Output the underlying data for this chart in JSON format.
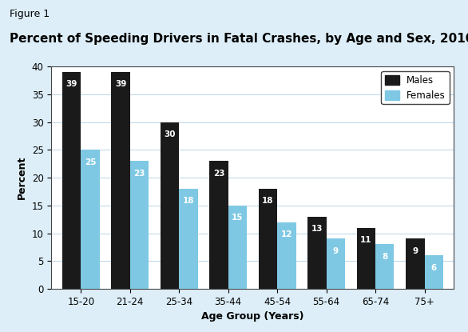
{
  "figure_label": "Figure 1",
  "title": "Percent of Speeding Drivers in Fatal Crashes, by Age and Sex, 2010",
  "categories": [
    "15-20",
    "21-24",
    "25-34",
    "35-44",
    "45-54",
    "55-64",
    "65-74",
    "75+"
  ],
  "males": [
    39,
    39,
    30,
    23,
    18,
    13,
    11,
    9
  ],
  "females": [
    25,
    23,
    18,
    15,
    12,
    9,
    8,
    6
  ],
  "male_color": "#1a1a1a",
  "female_color": "#7ec8e3",
  "xlabel": "Age Group (Years)",
  "ylabel": "Percent",
  "ylim": [
    0,
    40
  ],
  "yticks": [
    0,
    5,
    10,
    15,
    20,
    25,
    30,
    35,
    40
  ],
  "background_color": "#ddeef8",
  "plot_bg_color": "#ddeef8",
  "chart_bg_color": "#ffffff",
  "bar_width": 0.38,
  "legend_labels": [
    "Males",
    "Females"
  ],
  "title_fontsize": 11,
  "figure_label_fontsize": 9,
  "axis_label_fontsize": 9,
  "tick_fontsize": 8.5,
  "bar_label_fontsize": 7.5,
  "legend_fontsize": 8.5
}
